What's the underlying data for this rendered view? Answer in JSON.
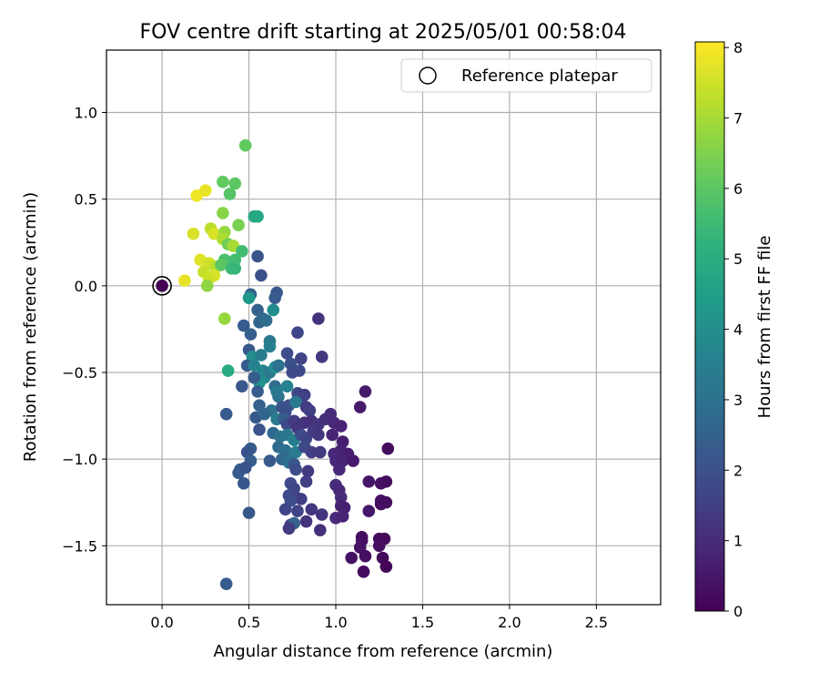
{
  "chart_data": {
    "type": "scatter",
    "title": "FOV centre drift starting at 2025/05/01 00:58:04",
    "xlabel": "Angular distance from reference (arcmin)",
    "ylabel": "Rotation from reference (arcmin)",
    "xlim": [
      -0.32,
      2.87
    ],
    "ylim": [
      -1.84,
      1.36
    ],
    "xticks": [
      0.0,
      0.5,
      1.0,
      1.5,
      2.0,
      2.5
    ],
    "xtick_labels": [
      "0.0",
      "0.5",
      "1.0",
      "1.5",
      "2.0",
      "2.5"
    ],
    "yticks": [
      1.0,
      0.5,
      0.0,
      -0.5,
      -1.0,
      -1.5
    ],
    "ytick_labels": [
      "1.0",
      "0.5",
      "0.0",
      "−0.5",
      "−1.0",
      "−1.5"
    ],
    "grid": true,
    "legend": {
      "position": "upper-right",
      "entries": [
        "Reference platepar"
      ]
    },
    "reference_point": {
      "x": 0.0,
      "y": 0.0
    },
    "colorbar": {
      "label": "Hours from first FF file",
      "range": [
        0,
        8.08
      ],
      "ticks": [
        0,
        1,
        2,
        3,
        4,
        5,
        6,
        7,
        8
      ],
      "tick_labels": [
        "0",
        "1",
        "2",
        "3",
        "4",
        "5",
        "6",
        "7",
        "8"
      ],
      "colormap": "viridis"
    },
    "series": [
      {
        "points": [
          {
            "x": 0.48,
            "y": 0.81,
            "t": 6.1
          },
          {
            "x": 0.35,
            "y": 0.6,
            "t": 6.1
          },
          {
            "x": 0.42,
            "y": 0.59,
            "t": 6.0
          },
          {
            "x": 0.39,
            "y": 0.53,
            "t": 5.9
          },
          {
            "x": 0.2,
            "y": 0.52,
            "t": 7.9
          },
          {
            "x": 0.25,
            "y": 0.55,
            "t": 7.8
          },
          {
            "x": 0.35,
            "y": 0.42,
            "t": 6.6
          },
          {
            "x": 0.44,
            "y": 0.35,
            "t": 6.4
          },
          {
            "x": 0.53,
            "y": 0.4,
            "t": 4.9
          },
          {
            "x": 0.55,
            "y": 0.4,
            "t": 4.8
          },
          {
            "x": 0.28,
            "y": 0.33,
            "t": 7.3
          },
          {
            "x": 0.3,
            "y": 0.3,
            "t": 7.6
          },
          {
            "x": 0.36,
            "y": 0.31,
            "t": 6.8
          },
          {
            "x": 0.18,
            "y": 0.3,
            "t": 7.6
          },
          {
            "x": 0.35,
            "y": 0.27,
            "t": 7.1
          },
          {
            "x": 0.38,
            "y": 0.24,
            "t": 6.3
          },
          {
            "x": 0.41,
            "y": 0.23,
            "t": 7.0
          },
          {
            "x": 0.46,
            "y": 0.2,
            "t": 5.6
          },
          {
            "x": 0.42,
            "y": 0.15,
            "t": 5.6
          },
          {
            "x": 0.36,
            "y": 0.15,
            "t": 5.7
          },
          {
            "x": 0.22,
            "y": 0.15,
            "t": 7.7
          },
          {
            "x": 0.27,
            "y": 0.13,
            "t": 7.5
          },
          {
            "x": 0.31,
            "y": 0.11,
            "t": 7.2
          },
          {
            "x": 0.34,
            "y": 0.12,
            "t": 6.0
          },
          {
            "x": 0.4,
            "y": 0.1,
            "t": 5.5
          },
          {
            "x": 0.42,
            "y": 0.1,
            "t": 5.4
          },
          {
            "x": 0.24,
            "y": 0.08,
            "t": 7.4
          },
          {
            "x": 0.3,
            "y": 0.06,
            "t": 7.6
          },
          {
            "x": 0.27,
            "y": 0.04,
            "t": 7.5
          },
          {
            "x": 0.13,
            "y": 0.03,
            "t": 7.8
          },
          {
            "x": 0.26,
            "y": 0.0,
            "t": 6.7
          },
          {
            "x": 0.55,
            "y": 0.17,
            "t": 2.1
          },
          {
            "x": 0.57,
            "y": 0.06,
            "t": 2.0
          },
          {
            "x": 0.51,
            "y": -0.05,
            "t": 2.5
          },
          {
            "x": 0.5,
            "y": -0.07,
            "t": 4.3
          },
          {
            "x": 0.66,
            "y": -0.04,
            "t": 2.2
          },
          {
            "x": 0.65,
            "y": -0.07,
            "t": 2.3
          },
          {
            "x": 0.55,
            "y": -0.14,
            "t": 2.5
          },
          {
            "x": 0.64,
            "y": -0.14,
            "t": 3.9
          },
          {
            "x": 0.58,
            "y": -0.19,
            "t": 2.7
          },
          {
            "x": 0.56,
            "y": -0.21,
            "t": 2.6
          },
          {
            "x": 0.6,
            "y": -0.2,
            "t": 2.9
          },
          {
            "x": 0.36,
            "y": -0.19,
            "t": 6.8
          },
          {
            "x": 0.47,
            "y": -0.23,
            "t": 2.3
          },
          {
            "x": 0.51,
            "y": -0.28,
            "t": 2.4
          },
          {
            "x": 0.62,
            "y": -0.32,
            "t": 3.2
          },
          {
            "x": 0.62,
            "y": -0.35,
            "t": 3.5
          },
          {
            "x": 0.78,
            "y": -0.27,
            "t": 1.7
          },
          {
            "x": 0.9,
            "y": -0.19,
            "t": 1.2
          },
          {
            "x": 0.5,
            "y": -0.37,
            "t": 2.2
          },
          {
            "x": 0.52,
            "y": -0.41,
            "t": 4.0
          },
          {
            "x": 0.57,
            "y": -0.4,
            "t": 3.4
          },
          {
            "x": 0.72,
            "y": -0.39,
            "t": 1.9
          },
          {
            "x": 0.8,
            "y": -0.42,
            "t": 1.6
          },
          {
            "x": 0.92,
            "y": -0.41,
            "t": 1.3
          },
          {
            "x": 0.49,
            "y": -0.46,
            "t": 2.3
          },
          {
            "x": 0.53,
            "y": -0.46,
            "t": 3.6
          },
          {
            "x": 0.58,
            "y": -0.49,
            "t": 3.7
          },
          {
            "x": 0.59,
            "y": -0.53,
            "t": 3.8
          },
          {
            "x": 0.62,
            "y": -0.5,
            "t": 3.3
          },
          {
            "x": 0.65,
            "y": -0.47,
            "t": 3.9
          },
          {
            "x": 0.67,
            "y": -0.46,
            "t": 3.0
          },
          {
            "x": 0.74,
            "y": -0.45,
            "t": 2.0
          },
          {
            "x": 0.75,
            "y": -0.5,
            "t": 1.8
          },
          {
            "x": 0.79,
            "y": -0.49,
            "t": 1.8
          },
          {
            "x": 0.38,
            "y": -0.49,
            "t": 4.9
          },
          {
            "x": 0.56,
            "y": -0.56,
            "t": 4.1
          },
          {
            "x": 0.53,
            "y": -0.53,
            "t": 2.4
          },
          {
            "x": 0.46,
            "y": -0.58,
            "t": 2.2
          },
          {
            "x": 0.55,
            "y": -0.61,
            "t": 2.3
          },
          {
            "x": 0.65,
            "y": -0.58,
            "t": 2.8
          },
          {
            "x": 0.66,
            "y": -0.61,
            "t": 3.4
          },
          {
            "x": 0.72,
            "y": -0.58,
            "t": 3.6
          },
          {
            "x": 0.67,
            "y": -0.64,
            "t": 3.1
          },
          {
            "x": 0.78,
            "y": -0.62,
            "t": 1.7
          },
          {
            "x": 0.82,
            "y": -0.63,
            "t": 1.5
          },
          {
            "x": 0.8,
            "y": -0.65,
            "t": 1.6
          },
          {
            "x": 0.56,
            "y": -0.69,
            "t": 2.5
          },
          {
            "x": 0.63,
            "y": -0.72,
            "t": 3.1
          },
          {
            "x": 0.69,
            "y": -0.7,
            "t": 2.1
          },
          {
            "x": 0.71,
            "y": -0.73,
            "t": 1.9
          },
          {
            "x": 0.73,
            "y": -0.69,
            "t": 2.0
          },
          {
            "x": 0.77,
            "y": -0.67,
            "t": 3.3
          },
          {
            "x": 0.83,
            "y": -0.7,
            "t": 1.4
          },
          {
            "x": 0.85,
            "y": -0.72,
            "t": 1.5
          },
          {
            "x": 1.17,
            "y": -0.61,
            "t": 0.6
          },
          {
            "x": 1.14,
            "y": -0.7,
            "t": 0.6
          },
          {
            "x": 0.37,
            "y": -0.74,
            "t": 2.3
          },
          {
            "x": 0.54,
            "y": -0.76,
            "t": 2.2
          },
          {
            "x": 0.59,
            "y": -0.74,
            "t": 2.6
          },
          {
            "x": 0.66,
            "y": -0.77,
            "t": 3.3
          },
          {
            "x": 0.7,
            "y": -0.77,
            "t": 2.4
          },
          {
            "x": 0.72,
            "y": -0.8,
            "t": 1.8
          },
          {
            "x": 0.76,
            "y": -0.78,
            "t": 1.4
          },
          {
            "x": 0.78,
            "y": -0.82,
            "t": 1.3
          },
          {
            "x": 0.82,
            "y": -0.79,
            "t": 1.2
          },
          {
            "x": 0.86,
            "y": -0.78,
            "t": 1.1
          },
          {
            "x": 0.9,
            "y": -0.8,
            "t": 1.2
          },
          {
            "x": 0.94,
            "y": -0.77,
            "t": 1.1
          },
          {
            "x": 0.97,
            "y": -0.74,
            "t": 1.0
          },
          {
            "x": 0.99,
            "y": -0.79,
            "t": 0.9
          },
          {
            "x": 1.03,
            "y": -0.81,
            "t": 0.8
          },
          {
            "x": 0.56,
            "y": -0.83,
            "t": 2.1
          },
          {
            "x": 0.64,
            "y": -0.85,
            "t": 2.7
          },
          {
            "x": 0.68,
            "y": -0.87,
            "t": 3.0
          },
          {
            "x": 0.72,
            "y": -0.86,
            "t": 3.2
          },
          {
            "x": 0.76,
            "y": -0.89,
            "t": 3.5
          },
          {
            "x": 0.8,
            "y": -0.86,
            "t": 1.9
          },
          {
            "x": 0.83,
            "y": -0.88,
            "t": 1.7
          },
          {
            "x": 0.87,
            "y": -0.84,
            "t": 1.4
          },
          {
            "x": 0.9,
            "y": -0.86,
            "t": 1.3
          },
          {
            "x": 0.98,
            "y": -0.86,
            "t": 0.8
          },
          {
            "x": 1.04,
            "y": -0.9,
            "t": 0.7
          },
          {
            "x": 1.3,
            "y": -0.94,
            "t": 0.3
          },
          {
            "x": 0.51,
            "y": -0.94,
            "t": 2.3
          },
          {
            "x": 0.49,
            "y": -0.96,
            "t": 2.1
          },
          {
            "x": 0.67,
            "y": -0.93,
            "t": 2.8
          },
          {
            "x": 0.71,
            "y": -0.95,
            "t": 2.9
          },
          {
            "x": 0.74,
            "y": -0.97,
            "t": 3.0
          },
          {
            "x": 0.77,
            "y": -0.96,
            "t": 3.4
          },
          {
            "x": 0.82,
            "y": -0.93,
            "t": 1.8
          },
          {
            "x": 0.86,
            "y": -0.96,
            "t": 1.5
          },
          {
            "x": 0.91,
            "y": -0.96,
            "t": 1.4
          },
          {
            "x": 0.99,
            "y": -0.97,
            "t": 0.9
          },
          {
            "x": 1.03,
            "y": -0.95,
            "t": 0.8
          },
          {
            "x": 1.07,
            "y": -0.97,
            "t": 0.7
          },
          {
            "x": 0.51,
            "y": -1.01,
            "t": 2.4
          },
          {
            "x": 0.62,
            "y": -1.01,
            "t": 2.3
          },
          {
            "x": 0.69,
            "y": -1.0,
            "t": 2.7
          },
          {
            "x": 0.73,
            "y": -1.02,
            "t": 3.1
          },
          {
            "x": 0.76,
            "y": -1.03,
            "t": 2.2
          },
          {
            "x": 1.0,
            "y": -1.01,
            "t": 0.9
          },
          {
            "x": 1.04,
            "y": -1.01,
            "t": 0.8
          },
          {
            "x": 1.1,
            "y": -1.01,
            "t": 0.6
          },
          {
            "x": 0.45,
            "y": -1.06,
            "t": 2.4
          },
          {
            "x": 0.44,
            "y": -1.08,
            "t": 2.3
          },
          {
            "x": 0.48,
            "y": -1.05,
            "t": 2.1
          },
          {
            "x": 0.77,
            "y": -1.06,
            "t": 1.9
          },
          {
            "x": 0.84,
            "y": -1.07,
            "t": 1.4
          },
          {
            "x": 1.02,
            "y": -1.06,
            "t": 0.9
          },
          {
            "x": 0.47,
            "y": -1.14,
            "t": 2.2
          },
          {
            "x": 0.74,
            "y": -1.14,
            "t": 1.8
          },
          {
            "x": 0.76,
            "y": -1.17,
            "t": 1.7
          },
          {
            "x": 0.83,
            "y": -1.13,
            "t": 1.5
          },
          {
            "x": 1.0,
            "y": -1.15,
            "t": 1.0
          },
          {
            "x": 1.02,
            "y": -1.18,
            "t": 0.9
          },
          {
            "x": 1.19,
            "y": -1.13,
            "t": 0.5
          },
          {
            "x": 1.26,
            "y": -1.14,
            "t": 0.4
          },
          {
            "x": 1.29,
            "y": -1.13,
            "t": 0.3
          },
          {
            "x": 0.73,
            "y": -1.21,
            "t": 1.8
          },
          {
            "x": 0.77,
            "y": -1.22,
            "t": 1.6
          },
          {
            "x": 0.8,
            "y": -1.23,
            "t": 1.5
          },
          {
            "x": 0.74,
            "y": -1.24,
            "t": 1.9
          },
          {
            "x": 1.03,
            "y": -1.22,
            "t": 1.0
          },
          {
            "x": 1.26,
            "y": -1.24,
            "t": 0.4
          },
          {
            "x": 1.29,
            "y": -1.25,
            "t": 0.3
          },
          {
            "x": 1.26,
            "y": -1.26,
            "t": 0.3
          },
          {
            "x": 0.71,
            "y": -1.29,
            "t": 1.7
          },
          {
            "x": 0.78,
            "y": -1.3,
            "t": 1.6
          },
          {
            "x": 0.86,
            "y": -1.29,
            "t": 1.3
          },
          {
            "x": 1.03,
            "y": -1.27,
            "t": 0.8
          },
          {
            "x": 1.05,
            "y": -1.28,
            "t": 0.7
          },
          {
            "x": 1.19,
            "y": -1.3,
            "t": 0.5
          },
          {
            "x": 0.5,
            "y": -1.31,
            "t": 2.2
          },
          {
            "x": 0.92,
            "y": -1.32,
            "t": 1.2
          },
          {
            "x": 1.0,
            "y": -1.34,
            "t": 0.9
          },
          {
            "x": 1.04,
            "y": -1.33,
            "t": 0.8
          },
          {
            "x": 0.74,
            "y": -1.38,
            "t": 1.5
          },
          {
            "x": 0.76,
            "y": -1.37,
            "t": 2.5
          },
          {
            "x": 0.83,
            "y": -1.36,
            "t": 1.2
          },
          {
            "x": 0.73,
            "y": -1.4,
            "t": 1.4
          },
          {
            "x": 0.91,
            "y": -1.41,
            "t": 1.1
          },
          {
            "x": 1.15,
            "y": -1.45,
            "t": 0.3
          },
          {
            "x": 1.15,
            "y": -1.47,
            "t": 0.3
          },
          {
            "x": 1.25,
            "y": -1.46,
            "t": 0.2
          },
          {
            "x": 1.28,
            "y": -1.46,
            "t": 0.2
          },
          {
            "x": 1.14,
            "y": -1.51,
            "t": 0.4
          },
          {
            "x": 1.25,
            "y": -1.5,
            "t": 0.3
          },
          {
            "x": 1.17,
            "y": -1.56,
            "t": 0.3
          },
          {
            "x": 1.09,
            "y": -1.57,
            "t": 0.4
          },
          {
            "x": 1.27,
            "y": -1.57,
            "t": 0.2
          },
          {
            "x": 1.29,
            "y": -1.62,
            "t": 0.1
          },
          {
            "x": 1.16,
            "y": -1.65,
            "t": 0.2
          },
          {
            "x": 0.37,
            "y": -1.72,
            "t": 2.3
          }
        ]
      }
    ]
  }
}
